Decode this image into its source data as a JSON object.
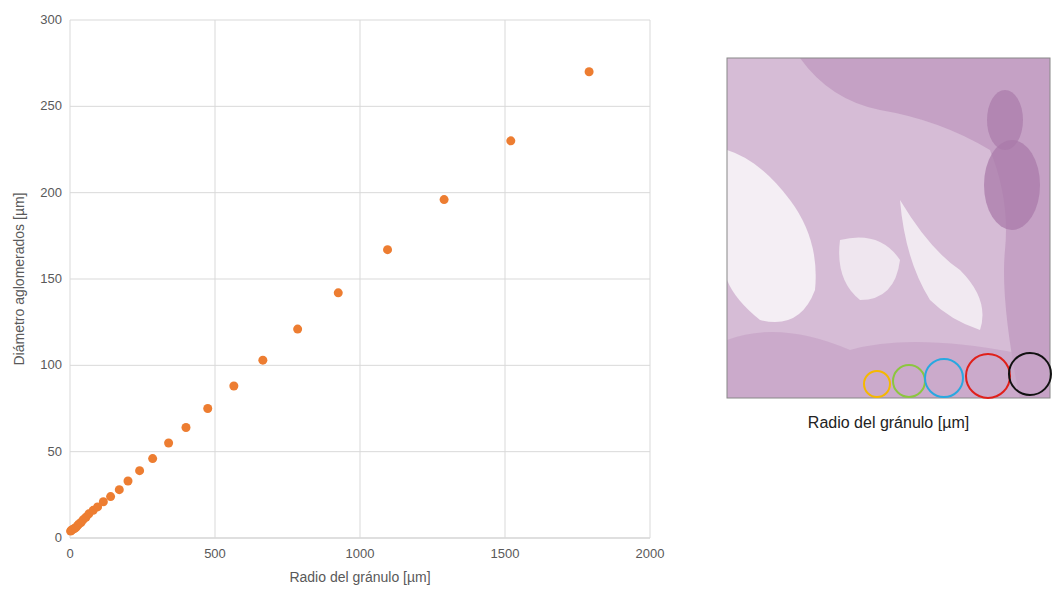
{
  "chart_data": {
    "type": "scatter",
    "x_label": "Radio del gránulo [µm]",
    "y_label": "Diámetro aglomerados [µm]",
    "series": [
      {
        "name": "Diámetro aglomerados",
        "color": "#ed7d31",
        "marker": "circle",
        "x": [
          2,
          5,
          10,
          15,
          20,
          25,
          30,
          38,
          45,
          55,
          65,
          80,
          95,
          115,
          140,
          170,
          200,
          240,
          285,
          340,
          400,
          475,
          565,
          665,
          785,
          925,
          1095,
          1290,
          1520,
          1790
        ],
        "values": [
          4,
          4.5,
          5,
          5.5,
          6,
          7,
          8,
          9,
          10.5,
          12,
          14,
          16,
          18,
          21,
          24,
          28,
          33,
          39,
          46,
          55,
          64,
          75,
          88,
          103,
          121,
          142,
          167,
          196,
          230,
          270
        ]
      }
    ],
    "xlim": [
      0,
      2000
    ],
    "xticks": [
      0,
      500,
      1000,
      1500,
      2000
    ],
    "ylim": [
      0,
      300
    ],
    "yticks": [
      0,
      50,
      100,
      150,
      200,
      250,
      300
    ],
    "grid": true
  },
  "micrograph": {
    "caption": "Radio del gránulo [µm]"
  }
}
